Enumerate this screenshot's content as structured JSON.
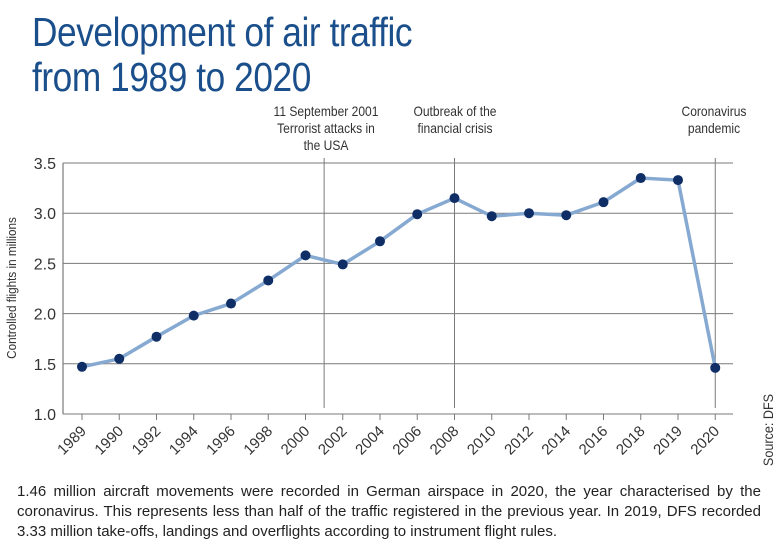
{
  "title": {
    "line1": "Development of air traffic",
    "line2": "from 1989 to 2020"
  },
  "annotations": [
    {
      "lines": [
        "11 September 2001",
        "Terrorist attacks in",
        "the USA"
      ],
      "x_position": 2001
    },
    {
      "lines": [
        "Outbreak of the",
        "financial crisis"
      ],
      "x_position": 2008
    },
    {
      "lines": [
        "Coronavirus",
        "pandemic"
      ],
      "x_position": 2020
    }
  ],
  "source": "Source: DFS",
  "caption": "1.46 million aircraft movements were recorded in German airspace in 2020, the year characterised by the coronavirus. This represents less than half of the traffic registered in the previous year. In 2019, DFS recorded 3.33 million take-offs, landings and overflights according to instrument flight rules.",
  "colors": {
    "title": "#1a4f8b",
    "line": "#86a9d2",
    "marker": "#0f2e66",
    "grid": "#7a7a7a",
    "text": "#333333"
  },
  "chart_data": {
    "type": "line",
    "title": "Development of air traffic from 1989 to 2020",
    "xlabel": "",
    "ylabel": "Controlled flights in millions",
    "categories": [
      "1989",
      "1990",
      "1992",
      "1994",
      "1996",
      "1998",
      "2000",
      "2002",
      "2004",
      "2006",
      "2008",
      "2010",
      "2012",
      "2014",
      "2016",
      "2018",
      "2019",
      "2020"
    ],
    "series": [
      {
        "name": "Controlled flights (millions)",
        "values": [
          1.47,
          1.55,
          1.77,
          1.98,
          2.1,
          2.33,
          2.58,
          2.49,
          2.72,
          2.99,
          3.15,
          2.97,
          3.0,
          2.98,
          3.11,
          3.35,
          3.33,
          1.46
        ]
      }
    ],
    "ylim": [
      1.0,
      3.5
    ],
    "yticks": [
      "1.0",
      "1.5",
      "2.0",
      "2.5",
      "3.0",
      "3.5"
    ],
    "grid": true,
    "legend": "none",
    "vertical_markers": [
      {
        "between": [
          "2000",
          "2002"
        ],
        "label": "11 September 2001 Terrorist attacks in the USA"
      },
      {
        "at": "2008",
        "label": "Outbreak of the financial crisis"
      },
      {
        "at": "2020",
        "label": "Coronavirus pandemic"
      }
    ]
  }
}
